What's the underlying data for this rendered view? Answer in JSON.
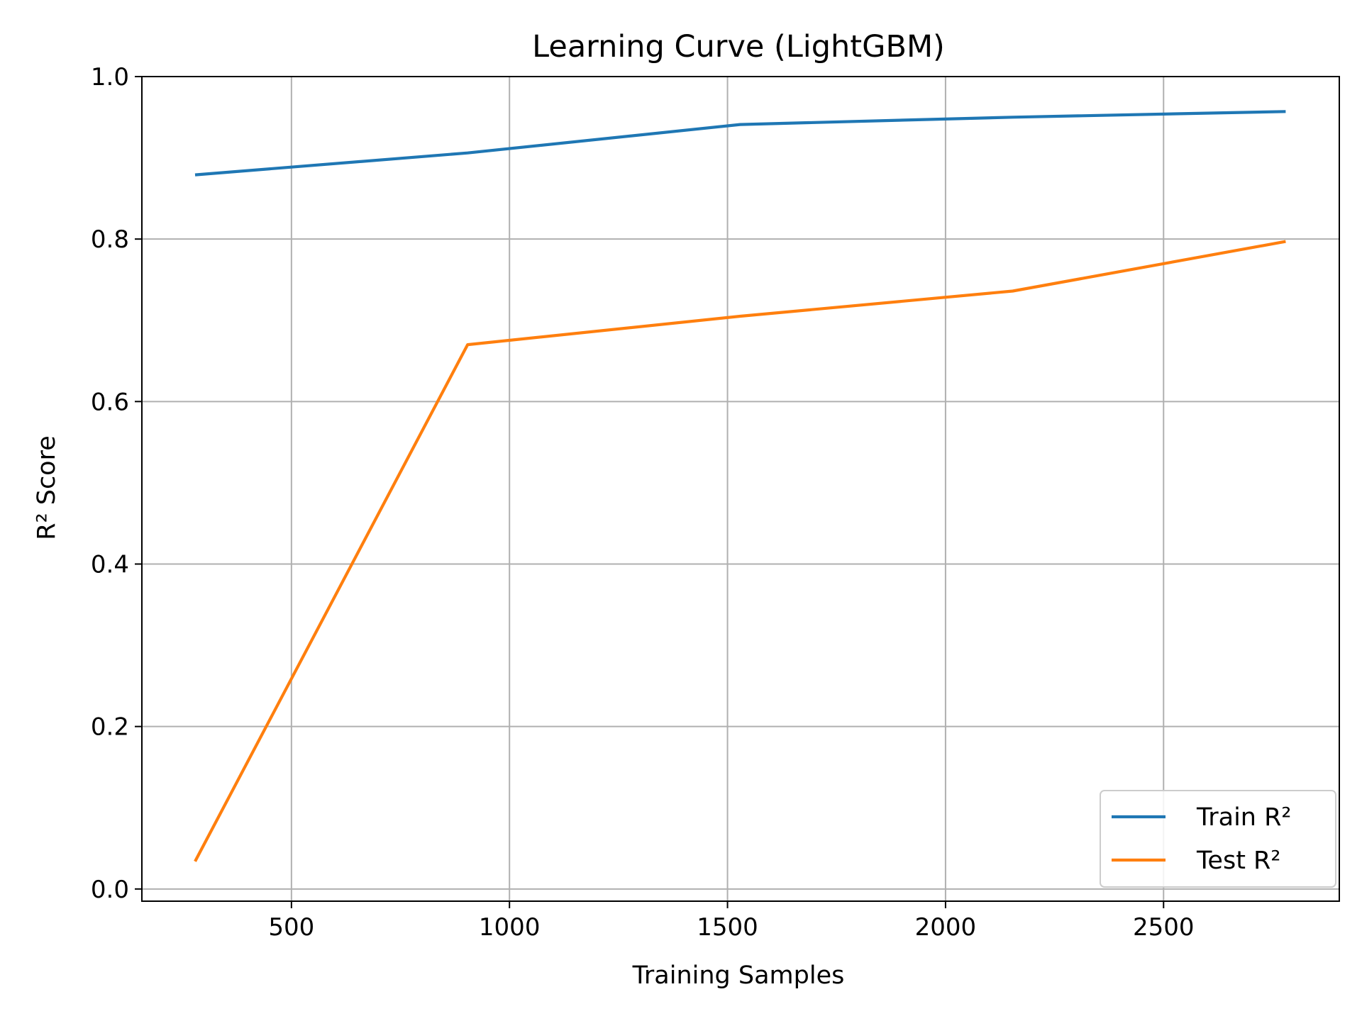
{
  "chart_data": {
    "type": "line",
    "title": "Learning Curve (LightGBM)",
    "xlabel": "Training Samples",
    "ylabel": "R² Score",
    "xlim": [
      157,
      2903
    ],
    "ylim": [
      -0.015,
      1.0
    ],
    "xticks": [
      500,
      1000,
      1500,
      2000,
      2500
    ],
    "yticks": [
      0.0,
      0.2,
      0.4,
      0.6,
      0.8,
      1.0
    ],
    "xtick_labels": [
      "500",
      "1000",
      "1500",
      "2000",
      "2500"
    ],
    "ytick_labels": [
      "0.0",
      "0.2",
      "0.4",
      "0.6",
      "0.8",
      "1.0"
    ],
    "grid": true,
    "legend_position": "lower-right",
    "x": [
      279,
      904,
      1529,
      2154,
      2780
    ],
    "series": [
      {
        "name": "Train R²",
        "color": "#1f77b4",
        "values": [
          0.879,
          0.906,
          0.941,
          0.95,
          0.957
        ]
      },
      {
        "name": "Test R²",
        "color": "#ff7f0e",
        "values": [
          0.034,
          0.67,
          0.705,
          0.736,
          0.797
        ]
      }
    ]
  }
}
